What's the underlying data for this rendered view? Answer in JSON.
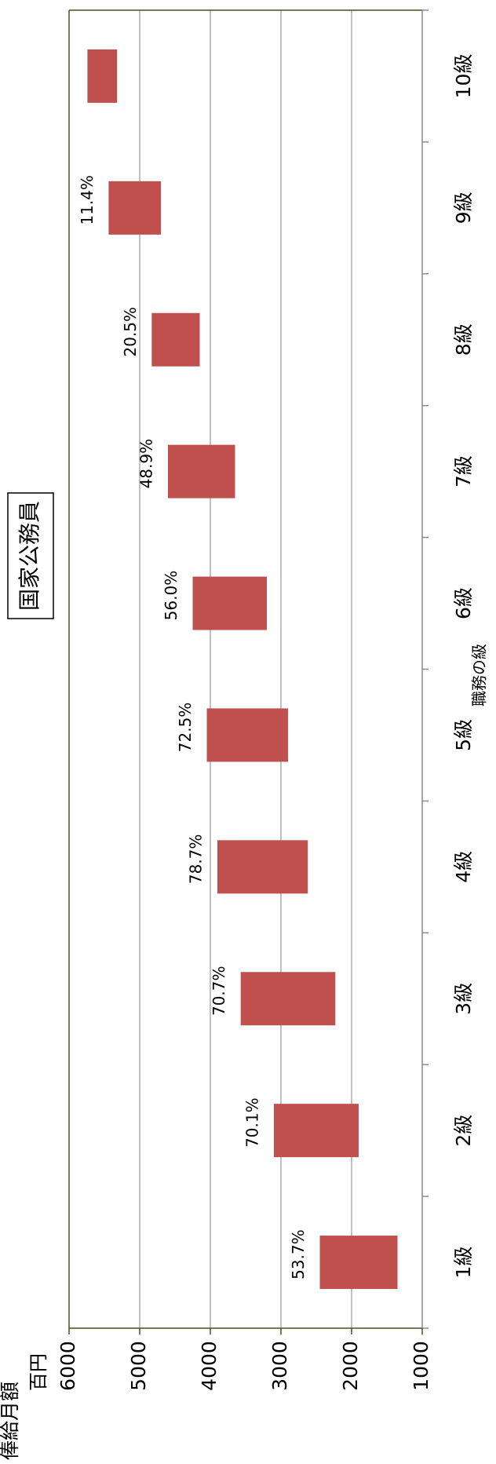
{
  "chart_data": {
    "type": "bar",
    "orientation": "floating-range",
    "title": "国家公務員",
    "xlabel": "職務の級",
    "ylabel": "俸給月額",
    "y_unit": "百円",
    "ylim": [
      1000,
      6000
    ],
    "yticks": [
      "6000",
      "5000",
      "4000",
      "3000",
      "2000",
      "1000"
    ],
    "grid": true,
    "categories": [
      "1級",
      "2級",
      "3級",
      "4級",
      "5級",
      "6級",
      "7級",
      "8級",
      "9級",
      "10級"
    ],
    "ranges": [
      {
        "low": 1350,
        "high": 2450
      },
      {
        "low": 1900,
        "high": 3100
      },
      {
        "low": 2230,
        "high": 3570
      },
      {
        "low": 2620,
        "high": 3900
      },
      {
        "low": 2900,
        "high": 4050
      },
      {
        "low": 3200,
        "high": 4250
      },
      {
        "low": 3650,
        "high": 4600
      },
      {
        "low": 4150,
        "high": 4830
      },
      {
        "low": 4700,
        "high": 5440
      },
      {
        "low": 5320,
        "high": 5740
      }
    ],
    "percent_labels": [
      "53.7%",
      "70.1%",
      "70.7%",
      "78.7%",
      "72.5%",
      "56.0%",
      "48.9%",
      "20.5%",
      "11.4%",
      ""
    ],
    "bar_color": "#c0504d",
    "grid_color": "#a0a0a0"
  }
}
